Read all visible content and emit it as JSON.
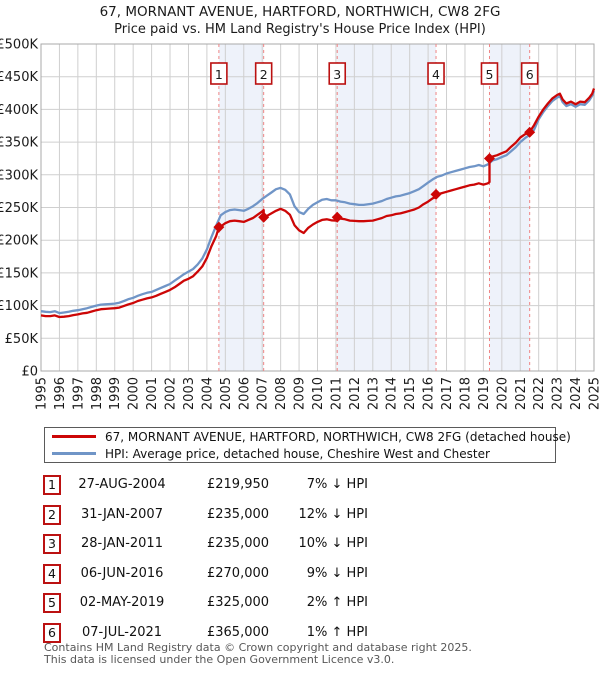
{
  "page": {
    "title_line1": "67, MORNANT AVENUE, HARTFORD, NORTHWICH, CW8 2FG",
    "title_line2": "Price paid vs. HM Land Registry's House Price Index (HPI)"
  },
  "chart_data": {
    "type": "line",
    "title": "67, MORNANT AVENUE, HARTFORD, NORTHWICH, CW8 2FG — Price paid vs. HPI",
    "unit": "GBP thousands",
    "grid": true,
    "legend_position": "bottom",
    "x_axis": {
      "min": 1995,
      "max": 2025,
      "tick_labels": [
        "1995",
        "1996",
        "1997",
        "1998",
        "1999",
        "2000",
        "2001",
        "2002",
        "2003",
        "2004",
        "2005",
        "2006",
        "2007",
        "2008",
        "2009",
        "2010",
        "2011",
        "2012",
        "2013",
        "2014",
        "2015",
        "2016",
        "2017",
        "2018",
        "2019",
        "2020",
        "2021",
        "2022",
        "2023",
        "2024",
        "2025"
      ]
    },
    "y_axis": {
      "min": 0,
      "max": 500,
      "tick_step": 50,
      "tick_labels": [
        "£0",
        "£50K",
        "£100K",
        "£150K",
        "£200K",
        "£250K",
        "£300K",
        "£350K",
        "£400K",
        "£450K",
        "£500K"
      ]
    },
    "series": [
      {
        "name": "67, MORNANT AVENUE, HARTFORD, NORTHWICH, CW8 2FG (detached house)",
        "color": "#cc0606",
        "points": [
          [
            1995.0,
            85
          ],
          [
            1995.25,
            84
          ],
          [
            1995.5,
            84
          ],
          [
            1995.75,
            85
          ],
          [
            1996.0,
            82.5
          ],
          [
            1996.25,
            83
          ],
          [
            1996.5,
            84
          ],
          [
            1996.75,
            85.5
          ],
          [
            1997.0,
            86.5
          ],
          [
            1997.25,
            88
          ],
          [
            1997.5,
            89
          ],
          [
            1997.75,
            91
          ],
          [
            1998.0,
            93
          ],
          [
            1998.25,
            94.5
          ],
          [
            1998.5,
            95
          ],
          [
            1998.75,
            95.5
          ],
          [
            1999.0,
            96
          ],
          [
            1999.25,
            97
          ],
          [
            1999.5,
            99.5
          ],
          [
            1999.75,
            102
          ],
          [
            2000.0,
            104
          ],
          [
            2000.25,
            107
          ],
          [
            2000.5,
            109
          ],
          [
            2000.75,
            111
          ],
          [
            2001.0,
            112.5
          ],
          [
            2001.25,
            115
          ],
          [
            2001.5,
            118
          ],
          [
            2001.75,
            121
          ],
          [
            2002.0,
            124
          ],
          [
            2002.25,
            128
          ],
          [
            2002.5,
            133
          ],
          [
            2002.75,
            138
          ],
          [
            2003.0,
            141
          ],
          [
            2003.25,
            145
          ],
          [
            2003.5,
            152
          ],
          [
            2003.75,
            160
          ],
          [
            2004.0,
            173
          ],
          [
            2004.25,
            191
          ],
          [
            2004.5,
            206
          ],
          [
            2004.65,
            219.95
          ],
          [
            2004.75,
            221
          ],
          [
            2005.0,
            226
          ],
          [
            2005.25,
            229
          ],
          [
            2005.5,
            230
          ],
          [
            2005.75,
            229
          ],
          [
            2006.0,
            228
          ],
          [
            2006.25,
            231
          ],
          [
            2006.5,
            234
          ],
          [
            2006.75,
            239
          ],
          [
            2007.0,
            244
          ],
          [
            2007.08,
            246
          ],
          [
            2007.08,
            235
          ],
          [
            2007.25,
            237
          ],
          [
            2007.5,
            241
          ],
          [
            2007.75,
            245
          ],
          [
            2008.0,
            248
          ],
          [
            2008.25,
            245
          ],
          [
            2008.5,
            239
          ],
          [
            2008.75,
            223
          ],
          [
            2009.0,
            215
          ],
          [
            2009.25,
            211
          ],
          [
            2009.5,
            219
          ],
          [
            2009.75,
            224
          ],
          [
            2010.0,
            228
          ],
          [
            2010.25,
            231
          ],
          [
            2010.5,
            232
          ],
          [
            2010.75,
            230.5
          ],
          [
            2011.0,
            230
          ],
          [
            2011.07,
            230
          ],
          [
            2011.07,
            235
          ],
          [
            2011.25,
            233
          ],
          [
            2011.5,
            232
          ],
          [
            2011.75,
            230
          ],
          [
            2012.0,
            229.5
          ],
          [
            2012.25,
            229
          ],
          [
            2012.5,
            229
          ],
          [
            2012.75,
            229.5
          ],
          [
            2013.0,
            230
          ],
          [
            2013.25,
            232
          ],
          [
            2013.5,
            234
          ],
          [
            2013.75,
            237
          ],
          [
            2014.0,
            238
          ],
          [
            2014.25,
            240
          ],
          [
            2014.5,
            241
          ],
          [
            2014.75,
            243
          ],
          [
            2015.0,
            245
          ],
          [
            2015.25,
            247
          ],
          [
            2015.5,
            250
          ],
          [
            2015.75,
            255
          ],
          [
            2016.0,
            259
          ],
          [
            2016.25,
            264
          ],
          [
            2016.43,
            266
          ],
          [
            2016.43,
            270
          ],
          [
            2016.5,
            270
          ],
          [
            2016.75,
            272
          ],
          [
            2017.0,
            274
          ],
          [
            2017.25,
            276
          ],
          [
            2017.5,
            278
          ],
          [
            2017.75,
            280
          ],
          [
            2018.0,
            282
          ],
          [
            2018.25,
            284
          ],
          [
            2018.5,
            285
          ],
          [
            2018.75,
            287
          ],
          [
            2019.0,
            285
          ],
          [
            2019.25,
            287
          ],
          [
            2019.33,
            289
          ],
          [
            2019.33,
            325
          ],
          [
            2019.5,
            328
          ],
          [
            2019.75,
            330
          ],
          [
            2020.0,
            333
          ],
          [
            2020.25,
            336
          ],
          [
            2020.5,
            343
          ],
          [
            2020.75,
            349
          ],
          [
            2021.0,
            357
          ],
          [
            2021.25,
            362
          ],
          [
            2021.5,
            365
          ],
          [
            2021.75,
            376
          ],
          [
            2022.0,
            389
          ],
          [
            2022.25,
            400
          ],
          [
            2022.5,
            409
          ],
          [
            2022.75,
            417
          ],
          [
            2023.0,
            422
          ],
          [
            2023.15,
            424
          ],
          [
            2023.3,
            415
          ],
          [
            2023.5,
            409
          ],
          [
            2023.75,
            412
          ],
          [
            2024.0,
            408
          ],
          [
            2024.25,
            412
          ],
          [
            2024.5,
            411
          ],
          [
            2024.75,
            418
          ],
          [
            2024.9,
            424
          ],
          [
            2025.0,
            432
          ]
        ]
      },
      {
        "name": "HPI: Average price, detached house, Cheshire West and Chester",
        "color": "#7095c7",
        "points": [
          [
            1995.0,
            91.5
          ],
          [
            1995.25,
            90.5
          ],
          [
            1995.5,
            90
          ],
          [
            1995.75,
            91.5
          ],
          [
            1996.0,
            88.5
          ],
          [
            1996.25,
            89.5
          ],
          [
            1996.5,
            90.5
          ],
          [
            1996.75,
            92
          ],
          [
            1997.0,
            93
          ],
          [
            1997.25,
            94.5
          ],
          [
            1997.5,
            96
          ],
          [
            1997.75,
            98
          ],
          [
            1998.0,
            100
          ],
          [
            1998.25,
            101.5
          ],
          [
            1998.5,
            102
          ],
          [
            1998.75,
            102.5
          ],
          [
            1999.0,
            103
          ],
          [
            1999.25,
            104.5
          ],
          [
            1999.5,
            107
          ],
          [
            1999.75,
            110
          ],
          [
            2000.0,
            112
          ],
          [
            2000.25,
            115
          ],
          [
            2000.5,
            117.5
          ],
          [
            2000.75,
            119.5
          ],
          [
            2001.0,
            121
          ],
          [
            2001.25,
            124
          ],
          [
            2001.5,
            127
          ],
          [
            2001.75,
            130
          ],
          [
            2002.0,
            133
          ],
          [
            2002.25,
            138
          ],
          [
            2002.5,
            143
          ],
          [
            2002.75,
            148
          ],
          [
            2003.0,
            152
          ],
          [
            2003.25,
            156
          ],
          [
            2003.5,
            163
          ],
          [
            2003.75,
            172
          ],
          [
            2004.0,
            186
          ],
          [
            2004.25,
            205
          ],
          [
            2004.5,
            222
          ],
          [
            2004.75,
            238
          ],
          [
            2005.0,
            243
          ],
          [
            2005.25,
            246
          ],
          [
            2005.5,
            247
          ],
          [
            2005.75,
            246
          ],
          [
            2006.0,
            245
          ],
          [
            2006.25,
            248
          ],
          [
            2006.5,
            252
          ],
          [
            2006.75,
            257
          ],
          [
            2007.0,
            263
          ],
          [
            2007.25,
            268
          ],
          [
            2007.5,
            273
          ],
          [
            2007.75,
            278
          ],
          [
            2008.0,
            280
          ],
          [
            2008.25,
            277
          ],
          [
            2008.5,
            270
          ],
          [
            2008.75,
            252
          ],
          [
            2009.0,
            243
          ],
          [
            2009.25,
            240
          ],
          [
            2009.5,
            248
          ],
          [
            2009.75,
            254
          ],
          [
            2010.0,
            258
          ],
          [
            2010.25,
            262
          ],
          [
            2010.5,
            263
          ],
          [
            2010.75,
            261
          ],
          [
            2011.0,
            261
          ],
          [
            2011.25,
            259
          ],
          [
            2011.5,
            258
          ],
          [
            2011.75,
            256
          ],
          [
            2012.0,
            255
          ],
          [
            2012.25,
            254
          ],
          [
            2012.5,
            254
          ],
          [
            2012.75,
            255
          ],
          [
            2013.0,
            256
          ],
          [
            2013.25,
            258
          ],
          [
            2013.5,
            260
          ],
          [
            2013.75,
            263
          ],
          [
            2014.0,
            265
          ],
          [
            2014.25,
            267
          ],
          [
            2014.5,
            268
          ],
          [
            2014.75,
            270
          ],
          [
            2015.0,
            272
          ],
          [
            2015.25,
            275
          ],
          [
            2015.5,
            278
          ],
          [
            2015.75,
            283
          ],
          [
            2016.0,
            288
          ],
          [
            2016.25,
            293
          ],
          [
            2016.5,
            297
          ],
          [
            2016.75,
            299
          ],
          [
            2017.0,
            302
          ],
          [
            2017.25,
            304
          ],
          [
            2017.5,
            306
          ],
          [
            2017.75,
            308
          ],
          [
            2018.0,
            310
          ],
          [
            2018.25,
            312
          ],
          [
            2018.5,
            313
          ],
          [
            2018.75,
            315
          ],
          [
            2019.0,
            313
          ],
          [
            2019.25,
            316
          ],
          [
            2019.5,
            322
          ],
          [
            2019.75,
            324
          ],
          [
            2020.0,
            327
          ],
          [
            2020.25,
            330
          ],
          [
            2020.5,
            336
          ],
          [
            2020.75,
            342
          ],
          [
            2021.0,
            350
          ],
          [
            2021.25,
            356
          ],
          [
            2021.5,
            361
          ],
          [
            2021.75,
            369
          ],
          [
            2022.0,
            385
          ],
          [
            2022.25,
            396
          ],
          [
            2022.5,
            405
          ],
          [
            2022.75,
            413
          ],
          [
            2023.0,
            418
          ],
          [
            2023.15,
            420
          ],
          [
            2023.3,
            411
          ],
          [
            2023.5,
            405
          ],
          [
            2023.75,
            408
          ],
          [
            2024.0,
            404
          ],
          [
            2024.25,
            408
          ],
          [
            2024.5,
            407
          ],
          [
            2024.75,
            414
          ],
          [
            2024.9,
            421
          ],
          [
            2025.0,
            428
          ]
        ]
      }
    ],
    "sale_markers": [
      {
        "label": "1",
        "x": 2004.65,
        "value": 219.95
      },
      {
        "label": "2",
        "x": 2007.08,
        "value": 235
      },
      {
        "label": "3",
        "x": 2011.07,
        "value": 235
      },
      {
        "label": "4",
        "x": 2016.43,
        "value": 270
      },
      {
        "label": "5",
        "x": 2019.33,
        "value": 325
      },
      {
        "label": "6",
        "x": 2021.51,
        "value": 365
      }
    ],
    "shaded_bands": [
      [
        2004.65,
        2007.08
      ],
      [
        2011.07,
        2016.43
      ],
      [
        2019.33,
        2021.51
      ]
    ],
    "colors": {
      "band": "#eef2fa",
      "grid": "#cfcfcf",
      "plot_border": "#a9a9a9",
      "dashed_line": "#ef8585",
      "marker": "#cc0606",
      "marker_box_border": "#bb1111"
    }
  },
  "legend": {
    "entries": [
      {
        "label": "67, MORNANT AVENUE, HARTFORD, NORTHWICH, CW8 2FG (detached house)",
        "color": "#cc0606"
      },
      {
        "label": "HPI: Average price, detached house, Cheshire West and Chester",
        "color": "#7095c7"
      }
    ]
  },
  "transactions": {
    "rows": [
      {
        "num": "1",
        "date": "27-AUG-2004",
        "price": "£219,950",
        "hpi_diff": "7% ↓ HPI"
      },
      {
        "num": "2",
        "date": "31-JAN-2007",
        "price": "£235,000",
        "hpi_diff": "12% ↓ HPI"
      },
      {
        "num": "3",
        "date": "28-JAN-2011",
        "price": "£235,000",
        "hpi_diff": "10% ↓ HPI"
      },
      {
        "num": "4",
        "date": "06-JUN-2016",
        "price": "£270,000",
        "hpi_diff": "9% ↓ HPI"
      },
      {
        "num": "5",
        "date": "02-MAY-2019",
        "price": "£325,000",
        "hpi_diff": "2% ↑ HPI"
      },
      {
        "num": "6",
        "date": "07-JUL-2021",
        "price": "£365,000",
        "hpi_diff": "1% ↑ HPI"
      }
    ]
  },
  "footer": {
    "line1": "Contains HM Land Registry data © Crown copyright and database right 2025.",
    "line2": "This data is licensed under the Open Government Licence v3.0."
  }
}
